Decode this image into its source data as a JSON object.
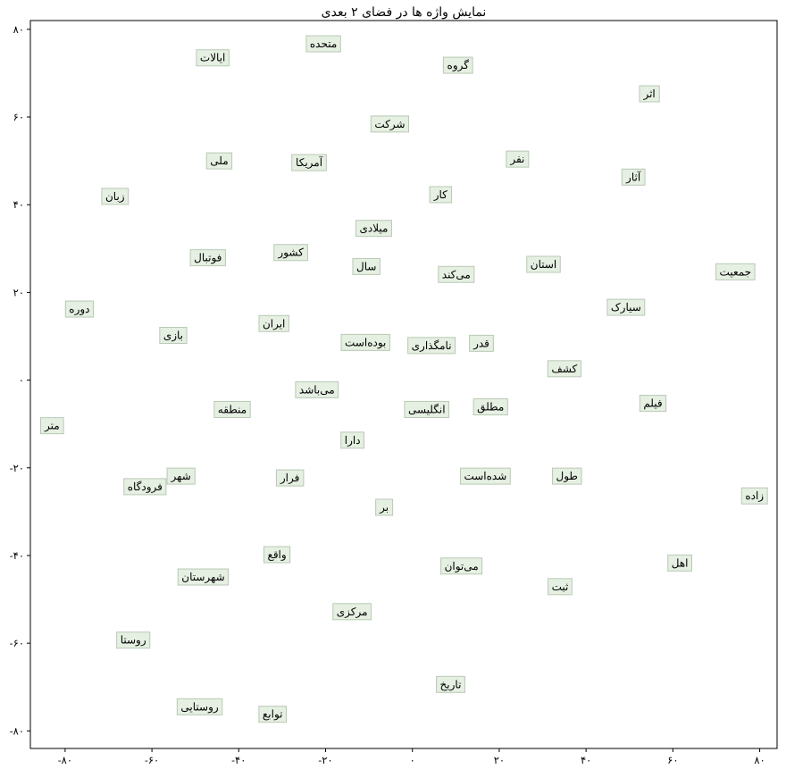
{
  "chart_data": {
    "type": "scatter",
    "title": "نمایش واژه ها در فضای ۲ بعدی",
    "xlabel": "",
    "ylabel": "",
    "xlim": [
      -88,
      84
    ],
    "ylim": [
      -84,
      82
    ],
    "grid": false,
    "x_ticks": [
      {
        "value": -80,
        "label": "-۸۰"
      },
      {
        "value": -60,
        "label": "-۶۰"
      },
      {
        "value": -40,
        "label": "-۴۰"
      },
      {
        "value": -20,
        "label": "-۲۰"
      },
      {
        "value": 0,
        "label": "۰"
      },
      {
        "value": 20,
        "label": "۲۰"
      },
      {
        "value": 40,
        "label": "۴۰"
      },
      {
        "value": 60,
        "label": "۶۰"
      },
      {
        "value": 80,
        "label": "۸۰"
      }
    ],
    "y_ticks": [
      {
        "value": 80,
        "label": "۸۰"
      },
      {
        "value": 60,
        "label": "۶۰"
      },
      {
        "value": 40,
        "label": "۴۰"
      },
      {
        "value": 20,
        "label": "۲۰"
      },
      {
        "value": 0,
        "label": "۰"
      },
      {
        "value": -20,
        "label": "-۲۰"
      },
      {
        "value": -40,
        "label": "-۴۰"
      },
      {
        "value": -60,
        "label": "-۶۰"
      },
      {
        "value": -80,
        "label": "-۸۰"
      }
    ],
    "label_box_color": "#e5efe2",
    "label_border_color": "#b9c9b5",
    "points": [
      {
        "label": "متحده",
        "x": -20.5,
        "y": 76.7
      },
      {
        "label": "ایالات",
        "x": -46.0,
        "y": 73.5
      },
      {
        "label": "گروه",
        "x": 10.5,
        "y": 71.8
      },
      {
        "label": "اثر",
        "x": 54.6,
        "y": 65.3
      },
      {
        "label": "شرکت",
        "x": -5.2,
        "y": 58.4
      },
      {
        "label": "ملی",
        "x": -44.5,
        "y": 50.0
      },
      {
        "label": "آمریکا",
        "x": -23.8,
        "y": 49.6
      },
      {
        "label": "نفر",
        "x": 24.2,
        "y": 50.4
      },
      {
        "label": "آثار",
        "x": 50.9,
        "y": 46.3
      },
      {
        "label": "زبان",
        "x": -68.5,
        "y": 41.9
      },
      {
        "label": "کار",
        "x": 6.5,
        "y": 42.3
      },
      {
        "label": "میلادی",
        "x": -8.9,
        "y": 34.6
      },
      {
        "label": "کشور",
        "x": -28.0,
        "y": 29.1
      },
      {
        "label": "فوتبال",
        "x": -47.1,
        "y": 27.9
      },
      {
        "label": "سال",
        "x": -10.6,
        "y": 25.9
      },
      {
        "label": "می‌کند",
        "x": 10.1,
        "y": 24.1
      },
      {
        "label": "استان",
        "x": 30.2,
        "y": 26.4
      },
      {
        "label": "جمعیت",
        "x": 74.4,
        "y": 24.7
      },
      {
        "label": "دوره",
        "x": -76.7,
        "y": 16.2
      },
      {
        "label": "سیارک",
        "x": 49.2,
        "y": 16.6
      },
      {
        "label": "ایران",
        "x": -31.9,
        "y": 12.9
      },
      {
        "label": "بازی",
        "x": -55.1,
        "y": 10.2
      },
      {
        "label": "بوده‌است",
        "x": -10.8,
        "y": 8.6
      },
      {
        "label": "نامگذاری",
        "x": 4.4,
        "y": 7.9
      },
      {
        "label": "قدر",
        "x": 15.9,
        "y": 8.4
      },
      {
        "label": "کشف",
        "x": 35.0,
        "y": 2.6
      },
      {
        "label": "می‌باشد",
        "x": -22.0,
        "y": -2.2
      },
      {
        "label": "منطقه",
        "x": -41.5,
        "y": -6.7
      },
      {
        "label": "انگلیسی",
        "x": 3.3,
        "y": -6.7
      },
      {
        "label": "مطلق",
        "x": 18.0,
        "y": -6.1
      },
      {
        "label": "فیلم",
        "x": 55.4,
        "y": -5.3
      },
      {
        "label": "متر",
        "x": -83.0,
        "y": -10.4
      },
      {
        "label": "دارا",
        "x": -13.8,
        "y": -13.7
      },
      {
        "label": "شهر",
        "x": -53.3,
        "y": -21.9
      },
      {
        "label": "فرار",
        "x": -28.2,
        "y": -22.3
      },
      {
        "label": "شده‌است",
        "x": 16.8,
        "y": -21.9
      },
      {
        "label": "طول",
        "x": 35.6,
        "y": -21.9
      },
      {
        "label": "فرودگاه",
        "x": -61.6,
        "y": -24.3
      },
      {
        "label": "زاده",
        "x": 78.8,
        "y": -26.4
      },
      {
        "label": "بر",
        "x": -6.5,
        "y": -29.0
      },
      {
        "label": "واقع",
        "x": -31.2,
        "y": -39.8
      },
      {
        "label": "شهرستان",
        "x": -48.2,
        "y": -44.9
      },
      {
        "label": "می‌توان",
        "x": 11.3,
        "y": -42.4
      },
      {
        "label": "اهل",
        "x": 61.6,
        "y": -41.7
      },
      {
        "label": "ثبت",
        "x": 34.0,
        "y": -47.1
      },
      {
        "label": "مرکزی",
        "x": -13.9,
        "y": -52.8
      },
      {
        "label": "روستا",
        "x": -64.3,
        "y": -59.3
      },
      {
        "label": "تاریخ",
        "x": 8.8,
        "y": -69.4
      },
      {
        "label": "روستایی",
        "x": -49.0,
        "y": -74.5
      },
      {
        "label": "توابع",
        "x": -32.2,
        "y": -76.2
      }
    ]
  }
}
